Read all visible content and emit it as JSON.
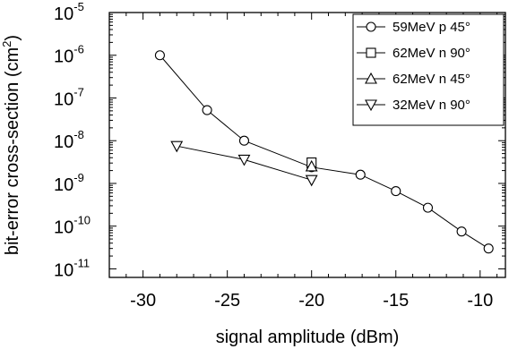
{
  "chart_data": {
    "type": "scatter",
    "title": "",
    "xlabel": "signal amplitude (dBm)",
    "ylabel": "bit-error cross-section (cm",
    "ylabel_sup": "2",
    "ylabel_end": ")",
    "xlim": [
      -32,
      -8.5
    ],
    "ylim_exp": [
      -11.2,
      -5
    ],
    "y_scale": "log",
    "grid": false,
    "legend_position": "top-right",
    "x_ticks": [
      -30,
      -25,
      -20,
      -15,
      -10
    ],
    "x_tick_labels": [
      "-30",
      "-25",
      "-20",
      "-15",
      "-10"
    ],
    "y_tick_exponents": [
      -11,
      -10,
      -9,
      -8,
      -7,
      -6,
      -5
    ],
    "y_tick_labels": [
      {
        "base": "10",
        "exp": "-11"
      },
      {
        "base": "10",
        "exp": "-10"
      },
      {
        "base": "10",
        "exp": "-9"
      },
      {
        "base": "10",
        "exp": "-8"
      },
      {
        "base": "10",
        "exp": "-7"
      },
      {
        "base": "10",
        "exp": "-6"
      },
      {
        "base": "10",
        "exp": "-5"
      }
    ],
    "series": [
      {
        "name": "59MeV p 45°",
        "marker": "circle",
        "line": true,
        "x": [
          -29,
          -26.2,
          -24,
          -20,
          -17.1,
          -15,
          -13.1,
          -11.1,
          -9.5
        ],
        "y": [
          1e-06,
          5.2e-08,
          1e-08,
          2.4e-09,
          1.6e-09,
          6.6e-10,
          2.7e-10,
          7.5e-11,
          3e-11
        ]
      },
      {
        "name": "62MeV n 90°",
        "marker": "square",
        "line": false,
        "x": [
          -20
        ],
        "y": [
          3.1e-09
        ]
      },
      {
        "name": "62MeV n 45°",
        "marker": "triangle-up",
        "line": false,
        "x": [
          -20
        ],
        "y": [
          2.5e-09
        ]
      },
      {
        "name": "32MeV n 90°",
        "marker": "triangle-down",
        "line": true,
        "x": [
          -28,
          -24,
          -20
        ],
        "y": [
          7.5e-09,
          3.6e-09,
          1.2e-09
        ]
      }
    ]
  }
}
